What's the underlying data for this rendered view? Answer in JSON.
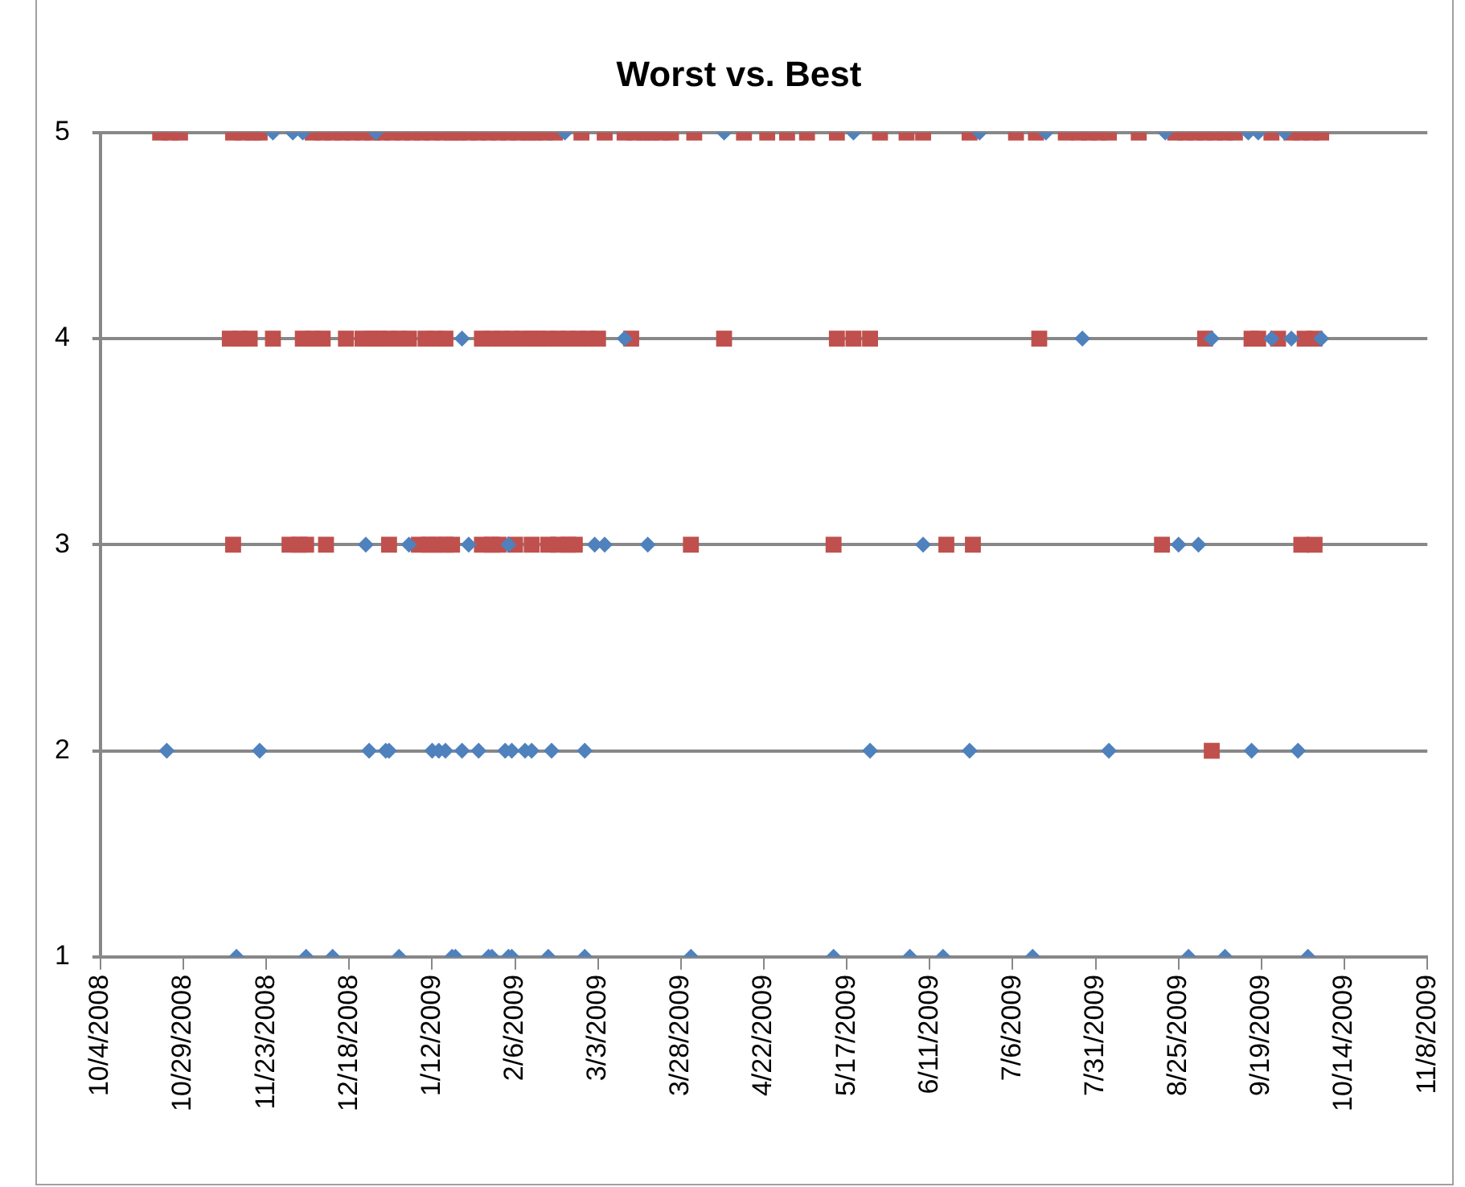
{
  "chart_data": {
    "type": "scatter",
    "title": "Worst vs. Best",
    "grid": "y",
    "legend": false,
    "xlim": [
      "2008-10-04",
      "2009-11-08"
    ],
    "xticks": [
      {
        "value": "2008-10-04",
        "label": "10/4/2008"
      },
      {
        "value": "2008-10-29",
        "label": "10/29/2008"
      },
      {
        "value": "2008-11-23",
        "label": "11/23/2008"
      },
      {
        "value": "2008-12-18",
        "label": "12/18/2008"
      },
      {
        "value": "2009-01-12",
        "label": "1/12/2009"
      },
      {
        "value": "2009-02-06",
        "label": "2/6/2009"
      },
      {
        "value": "2009-03-03",
        "label": "3/3/2009"
      },
      {
        "value": "2009-03-28",
        "label": "3/28/2009"
      },
      {
        "value": "2009-04-22",
        "label": "4/22/2009"
      },
      {
        "value": "2009-05-17",
        "label": "5/17/2009"
      },
      {
        "value": "2009-06-11",
        "label": "6/11/2009"
      },
      {
        "value": "2009-07-06",
        "label": "7/6/2009"
      },
      {
        "value": "2009-07-31",
        "label": "7/31/2009"
      },
      {
        "value": "2009-08-25",
        "label": "8/25/2009"
      },
      {
        "value": "2009-09-19",
        "label": "9/19/2009"
      },
      {
        "value": "2009-10-14",
        "label": "10/14/2009"
      },
      {
        "value": "2009-11-08",
        "label": "11/8/2009"
      }
    ],
    "ylim": [
      1,
      5
    ],
    "yticks": [
      1,
      2,
      3,
      4,
      5
    ],
    "series": [
      {
        "color": "#4f81bd",
        "marker": "diamond",
        "x": [
          "2008-11-25",
          "2008-12-01",
          "2008-12-04",
          "2008-12-26",
          "2009-02-21",
          "2009-04-10",
          "2009-05-19",
          "2009-06-26",
          "2009-07-16",
          "2009-08-21",
          "2009-09-15",
          "2009-09-18",
          "2009-09-26",
          "2009-01-21",
          "2009-03-11",
          "2009-07-27",
          "2009-09-04",
          "2009-09-22",
          "2009-09-28",
          "2009-10-07",
          "2008-12-23",
          "2009-01-05",
          "2009-01-23",
          "2009-02-04",
          "2009-03-02",
          "2009-03-05",
          "2009-03-18",
          "2009-06-09",
          "2009-08-25",
          "2009-08-31",
          "2008-10-24",
          "2008-11-21",
          "2008-12-24",
          "2008-12-29",
          "2008-12-30",
          "2009-01-12",
          "2009-01-14",
          "2009-01-16",
          "2009-01-21",
          "2009-01-26",
          "2009-02-03",
          "2009-02-05",
          "2009-02-09",
          "2009-02-11",
          "2009-02-17",
          "2009-02-27",
          "2009-05-24",
          "2009-06-23",
          "2009-08-04",
          "2009-09-16",
          "2009-09-30",
          "2008-11-14",
          "2008-12-05",
          "2008-12-13",
          "2009-01-02",
          "2009-01-18",
          "2009-01-19",
          "2009-01-29",
          "2009-01-30",
          "2009-02-04",
          "2009-02-05",
          "2009-02-16",
          "2009-02-27",
          "2009-03-31",
          "2009-05-13",
          "2009-06-05",
          "2009-06-15",
          "2009-07-12",
          "2009-08-28",
          "2009-09-08",
          "2009-10-03"
        ],
        "values": [
          5,
          5,
          5,
          5,
          5,
          5,
          5,
          5,
          5,
          5,
          5,
          5,
          5,
          4,
          4,
          4,
          4,
          4,
          4,
          4,
          3,
          3,
          3,
          3,
          3,
          3,
          3,
          3,
          3,
          3,
          2,
          2,
          2,
          2,
          2,
          2,
          2,
          2,
          2,
          2,
          2,
          2,
          2,
          2,
          2,
          2,
          2,
          2,
          2,
          2,
          2,
          1,
          1,
          1,
          1,
          1,
          1,
          1,
          1,
          1,
          1,
          1,
          1,
          1,
          1,
          1,
          1,
          1,
          1,
          1,
          1
        ]
      },
      {
        "color": "#c0504d",
        "marker": "square",
        "x": [
          "2008-10-22",
          "2008-10-25",
          "2008-10-28",
          "2008-11-13",
          "2008-11-16",
          "2008-11-19",
          "2008-11-21",
          "2008-12-07",
          "2008-12-10",
          "2008-12-13",
          "2008-12-16",
          "2008-12-19",
          "2008-12-22",
          "2008-12-25",
          "2008-12-28",
          "2008-12-31",
          "2009-01-03",
          "2009-01-06",
          "2009-01-09",
          "2009-01-12",
          "2009-01-15",
          "2009-01-18",
          "2009-01-20",
          "2009-01-23",
          "2009-01-26",
          "2009-01-29",
          "2009-02-01",
          "2009-02-04",
          "2009-02-07",
          "2009-02-10",
          "2009-02-12",
          "2009-02-15",
          "2009-02-18",
          "2009-02-26",
          "2009-03-05",
          "2009-03-11",
          "2009-03-14",
          "2009-03-17",
          "2009-03-19",
          "2009-03-22",
          "2009-03-25",
          "2009-04-01",
          "2009-04-16",
          "2009-04-23",
          "2009-04-29",
          "2009-05-05",
          "2009-05-14",
          "2009-05-27",
          "2009-06-04",
          "2009-06-09",
          "2009-06-23",
          "2009-07-07",
          "2009-07-13",
          "2009-07-22",
          "2009-07-26",
          "2009-07-29",
          "2009-08-01",
          "2009-08-04",
          "2009-08-13",
          "2009-08-24",
          "2009-08-27",
          "2009-08-30",
          "2009-09-02",
          "2009-09-05",
          "2009-09-08",
          "2009-09-11",
          "2009-09-22",
          "2009-09-28",
          "2009-10-01",
          "2009-10-04",
          "2009-10-07",
          "2008-11-12",
          "2008-11-15",
          "2008-11-18",
          "2008-11-25",
          "2008-12-04",
          "2008-12-07",
          "2008-12-10",
          "2008-12-17",
          "2008-12-22",
          "2008-12-25",
          "2008-12-27",
          "2008-12-30",
          "2009-01-02",
          "2009-01-05",
          "2009-01-10",
          "2009-01-13",
          "2009-01-16",
          "2009-01-27",
          "2009-01-30",
          "2009-02-02",
          "2009-02-05",
          "2009-02-08",
          "2009-02-11",
          "2009-02-13",
          "2009-02-16",
          "2009-02-19",
          "2009-02-22",
          "2009-02-25",
          "2009-02-28",
          "2009-03-03",
          "2009-03-13",
          "2009-04-10",
          "2009-05-14",
          "2009-05-19",
          "2009-05-24",
          "2009-07-14",
          "2009-09-02",
          "2009-09-16",
          "2009-09-18",
          "2009-09-24",
          "2009-10-02",
          "2009-10-05",
          "2008-11-13",
          "2008-11-30",
          "2008-12-03",
          "2008-12-05",
          "2008-12-11",
          "2008-12-30",
          "2009-01-08",
          "2009-01-11",
          "2009-01-13",
          "2009-01-16",
          "2009-01-18",
          "2009-01-27",
          "2009-01-30",
          "2009-02-01",
          "2009-02-06",
          "2009-02-11",
          "2009-02-16",
          "2009-02-19",
          "2009-02-22",
          "2009-02-24",
          "2009-03-31",
          "2009-05-13",
          "2009-06-16",
          "2009-06-24",
          "2009-08-20",
          "2009-10-01",
          "2009-10-05",
          "2009-09-04"
        ],
        "values": [
          5,
          5,
          5,
          5,
          5,
          5,
          5,
          5,
          5,
          5,
          5,
          5,
          5,
          5,
          5,
          5,
          5,
          5,
          5,
          5,
          5,
          5,
          5,
          5,
          5,
          5,
          5,
          5,
          5,
          5,
          5,
          5,
          5,
          5,
          5,
          5,
          5,
          5,
          5,
          5,
          5,
          5,
          5,
          5,
          5,
          5,
          5,
          5,
          5,
          5,
          5,
          5,
          5,
          5,
          5,
          5,
          5,
          5,
          5,
          5,
          5,
          5,
          5,
          5,
          5,
          5,
          5,
          5,
          5,
          5,
          5,
          4,
          4,
          4,
          4,
          4,
          4,
          4,
          4,
          4,
          4,
          4,
          4,
          4,
          4,
          4,
          4,
          4,
          4,
          4,
          4,
          4,
          4,
          4,
          4,
          4,
          4,
          4,
          4,
          4,
          4,
          4,
          4,
          4,
          4,
          4,
          4,
          4,
          4,
          4,
          4,
          4,
          4,
          3,
          3,
          3,
          3,
          3,
          3,
          3,
          3,
          3,
          3,
          3,
          3,
          3,
          3,
          3,
          3,
          3,
          3,
          3,
          3,
          3,
          3,
          3,
          3,
          3,
          3,
          3,
          2
        ]
      }
    ]
  }
}
